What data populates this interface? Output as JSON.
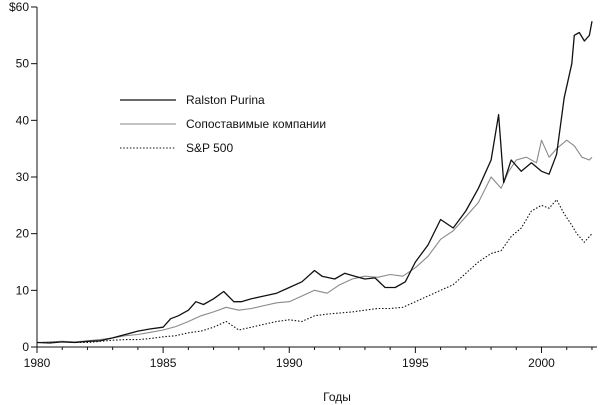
{
  "chart_data": {
    "type": "line",
    "title": "",
    "xlabel": "Годы",
    "ylabel": "",
    "xlim": [
      1980,
      2002.2
    ],
    "ylim": [
      0,
      60
    ],
    "x_ticks": [
      1980,
      1985,
      1990,
      1995,
      2000
    ],
    "x_tick_labels": [
      "1980",
      "1985",
      "1990",
      "1995",
      "2000"
    ],
    "y_ticks": [
      0,
      10,
      20,
      30,
      40,
      50,
      60
    ],
    "y_tick_labels": [
      "0",
      "10",
      "20",
      "30",
      "40",
      "50",
      "$60"
    ],
    "grid": false,
    "legend_position": "upper-left",
    "series": [
      {
        "name": "Ralston Purina",
        "style": "solid-dark",
        "color": "#111111",
        "points": [
          [
            1980.0,
            0.8
          ],
          [
            1980.5,
            0.7
          ],
          [
            1981.0,
            0.9
          ],
          [
            1981.5,
            0.8
          ],
          [
            1982.0,
            1.0
          ],
          [
            1982.5,
            1.1
          ],
          [
            1983.0,
            1.6
          ],
          [
            1983.5,
            2.2
          ],
          [
            1984.0,
            2.8
          ],
          [
            1984.5,
            3.2
          ],
          [
            1985.0,
            3.5
          ],
          [
            1985.3,
            5.0
          ],
          [
            1985.6,
            5.5
          ],
          [
            1986.0,
            6.5
          ],
          [
            1986.3,
            8.0
          ],
          [
            1986.6,
            7.5
          ],
          [
            1987.0,
            8.5
          ],
          [
            1987.4,
            9.8
          ],
          [
            1987.8,
            8.0
          ],
          [
            1988.1,
            8.0
          ],
          [
            1988.5,
            8.5
          ],
          [
            1989.0,
            9.0
          ],
          [
            1989.5,
            9.5
          ],
          [
            1990.0,
            10.5
          ],
          [
            1990.5,
            11.5
          ],
          [
            1991.0,
            13.5
          ],
          [
            1991.3,
            12.5
          ],
          [
            1991.8,
            12.0
          ],
          [
            1992.2,
            13.0
          ],
          [
            1992.6,
            12.5
          ],
          [
            1993.0,
            12.0
          ],
          [
            1993.4,
            12.2
          ],
          [
            1993.8,
            10.5
          ],
          [
            1994.2,
            10.5
          ],
          [
            1994.6,
            11.5
          ],
          [
            1995.0,
            15.0
          ],
          [
            1995.5,
            18.0
          ],
          [
            1996.0,
            22.5
          ],
          [
            1996.5,
            21.0
          ],
          [
            1997.0,
            24.0
          ],
          [
            1997.5,
            28.0
          ],
          [
            1998.0,
            33.0
          ],
          [
            1998.3,
            41.0
          ],
          [
            1998.5,
            29.0
          ],
          [
            1998.8,
            33.0
          ],
          [
            1999.2,
            31.0
          ],
          [
            1999.6,
            32.5
          ],
          [
            2000.0,
            31.0
          ],
          [
            2000.3,
            30.5
          ],
          [
            2000.6,
            34.0
          ],
          [
            2000.9,
            44.0
          ],
          [
            2001.2,
            50.0
          ],
          [
            2001.3,
            55.0
          ],
          [
            2001.5,
            55.5
          ],
          [
            2001.7,
            54.0
          ],
          [
            2001.9,
            55.0
          ],
          [
            2002.0,
            57.5
          ]
        ]
      },
      {
        "name": "Сопоставимые компании",
        "style": "solid-gray",
        "color": "#8a8a8a",
        "points": [
          [
            1980.0,
            0.8
          ],
          [
            1980.5,
            0.9
          ],
          [
            1981.0,
            1.0
          ],
          [
            1981.5,
            0.9
          ],
          [
            1982.0,
            1.1
          ],
          [
            1982.5,
            1.3
          ],
          [
            1983.0,
            1.6
          ],
          [
            1983.5,
            2.0
          ],
          [
            1984.0,
            2.2
          ],
          [
            1984.5,
            2.6
          ],
          [
            1985.0,
            3.0
          ],
          [
            1985.5,
            3.6
          ],
          [
            1986.0,
            4.5
          ],
          [
            1986.5,
            5.5
          ],
          [
            1987.0,
            6.2
          ],
          [
            1987.5,
            7.0
          ],
          [
            1988.0,
            6.5
          ],
          [
            1988.5,
            6.8
          ],
          [
            1989.0,
            7.3
          ],
          [
            1989.5,
            7.8
          ],
          [
            1990.0,
            8.0
          ],
          [
            1990.5,
            9.0
          ],
          [
            1991.0,
            10.0
          ],
          [
            1991.5,
            9.5
          ],
          [
            1992.0,
            11.0
          ],
          [
            1992.5,
            12.0
          ],
          [
            1993.0,
            12.5
          ],
          [
            1993.5,
            12.3
          ],
          [
            1994.0,
            12.8
          ],
          [
            1994.5,
            12.5
          ],
          [
            1995.0,
            14.0
          ],
          [
            1995.5,
            16.0
          ],
          [
            1996.0,
            19.0
          ],
          [
            1996.5,
            20.5
          ],
          [
            1997.0,
            23.0
          ],
          [
            1997.5,
            25.5
          ],
          [
            1998.0,
            30.0
          ],
          [
            1998.4,
            28.0
          ],
          [
            1998.7,
            31.0
          ],
          [
            1999.0,
            33.0
          ],
          [
            1999.4,
            33.5
          ],
          [
            1999.8,
            32.5
          ],
          [
            2000.0,
            36.5
          ],
          [
            2000.3,
            33.5
          ],
          [
            2000.6,
            35.0
          ],
          [
            2001.0,
            36.5
          ],
          [
            2001.3,
            35.5
          ],
          [
            2001.6,
            33.5
          ],
          [
            2001.9,
            33.0
          ],
          [
            2002.0,
            33.5
          ]
        ]
      },
      {
        "name": "S&P 500",
        "style": "dotted",
        "color": "#111111",
        "points": [
          [
            1980.0,
            0.8
          ],
          [
            1980.5,
            0.8
          ],
          [
            1981.0,
            0.9
          ],
          [
            1981.5,
            0.8
          ],
          [
            1982.0,
            0.8
          ],
          [
            1982.5,
            1.0
          ],
          [
            1983.0,
            1.2
          ],
          [
            1983.5,
            1.3
          ],
          [
            1984.0,
            1.3
          ],
          [
            1984.5,
            1.5
          ],
          [
            1985.0,
            1.8
          ],
          [
            1985.5,
            2.0
          ],
          [
            1986.0,
            2.5
          ],
          [
            1986.5,
            2.8
          ],
          [
            1987.0,
            3.5
          ],
          [
            1987.5,
            4.5
          ],
          [
            1988.0,
            3.0
          ],
          [
            1988.5,
            3.5
          ],
          [
            1989.0,
            4.0
          ],
          [
            1989.5,
            4.5
          ],
          [
            1990.0,
            4.8
          ],
          [
            1990.5,
            4.5
          ],
          [
            1991.0,
            5.5
          ],
          [
            1991.5,
            5.8
          ],
          [
            1992.0,
            6.0
          ],
          [
            1992.5,
            6.2
          ],
          [
            1993.0,
            6.5
          ],
          [
            1993.5,
            6.8
          ],
          [
            1994.0,
            6.8
          ],
          [
            1994.5,
            7.0
          ],
          [
            1995.0,
            8.0
          ],
          [
            1995.5,
            9.0
          ],
          [
            1996.0,
            10.0
          ],
          [
            1996.5,
            11.0
          ],
          [
            1997.0,
            13.0
          ],
          [
            1997.5,
            15.0
          ],
          [
            1998.0,
            16.5
          ],
          [
            1998.4,
            17.0
          ],
          [
            1998.8,
            19.5
          ],
          [
            1999.2,
            21.0
          ],
          [
            1999.6,
            24.0
          ],
          [
            2000.0,
            25.0
          ],
          [
            2000.3,
            24.5
          ],
          [
            2000.6,
            26.0
          ],
          [
            2000.9,
            23.5
          ],
          [
            2001.2,
            21.5
          ],
          [
            2001.4,
            20.0
          ],
          [
            2001.7,
            18.5
          ],
          [
            2001.9,
            19.5
          ],
          [
            2002.0,
            20.0
          ]
        ]
      }
    ]
  }
}
